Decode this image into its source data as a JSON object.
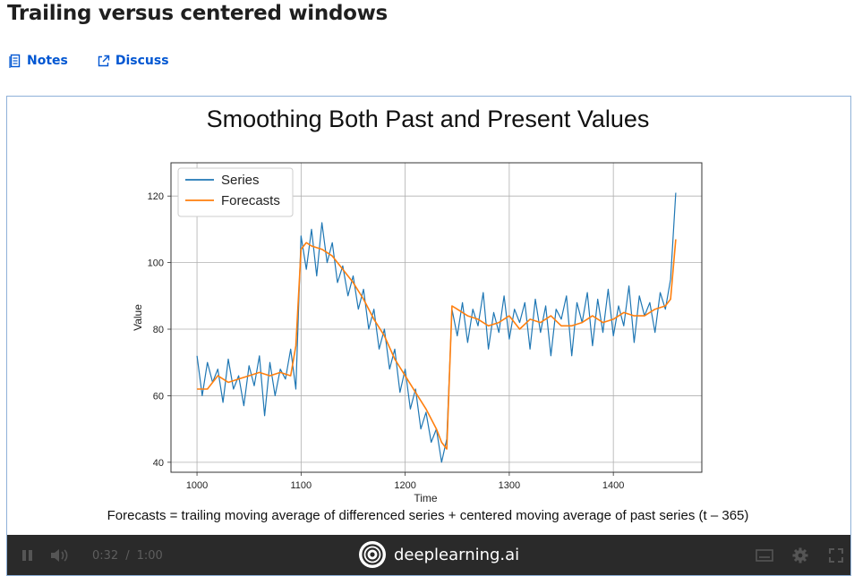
{
  "page": {
    "title": "Trailing versus centered windows"
  },
  "tabs": [
    {
      "label": "Notes",
      "icon": "notes-icon"
    },
    {
      "label": "Discuss",
      "icon": "external-link-icon"
    }
  ],
  "colors": {
    "link": "#0056d2",
    "series": "#1f77b4",
    "forecast": "#ff7f0e",
    "controls_bg": "#2a2a2a"
  },
  "slide": {
    "title": "Smoothing Both Past and Present Values",
    "caption": "Forecasts = trailing moving average of differenced series + centered moving average of past series (t – 365)"
  },
  "player": {
    "current_time": "0:32",
    "separator": "/",
    "duration": "1:00",
    "brand": "deeplearning.ai"
  },
  "chart_data": {
    "type": "line",
    "title": "",
    "xlabel": "Time",
    "ylabel": "Value",
    "xlim": [
      975,
      1485
    ],
    "ylim": [
      37,
      130
    ],
    "xticks": [
      1000,
      1100,
      1200,
      1300,
      1400
    ],
    "yticks": [
      40,
      60,
      80,
      100,
      120
    ],
    "grid": true,
    "legend": {
      "position": "top-left",
      "entries": [
        "Series",
        "Forecasts"
      ]
    },
    "series": [
      {
        "name": "Series",
        "x": [
          1000,
          1005,
          1010,
          1015,
          1020,
          1025,
          1030,
          1035,
          1040,
          1045,
          1050,
          1055,
          1060,
          1065,
          1070,
          1075,
          1080,
          1085,
          1090,
          1095,
          1100,
          1105,
          1110,
          1115,
          1120,
          1125,
          1130,
          1135,
          1140,
          1145,
          1150,
          1155,
          1160,
          1165,
          1170,
          1175,
          1180,
          1185,
          1190,
          1195,
          1200,
          1205,
          1210,
          1215,
          1220,
          1225,
          1230,
          1235,
          1240,
          1245,
          1250,
          1255,
          1260,
          1265,
          1270,
          1275,
          1280,
          1285,
          1290,
          1295,
          1300,
          1305,
          1310,
          1315,
          1320,
          1325,
          1330,
          1335,
          1340,
          1345,
          1350,
          1355,
          1360,
          1365,
          1370,
          1375,
          1380,
          1385,
          1390,
          1395,
          1400,
          1405,
          1410,
          1415,
          1420,
          1425,
          1430,
          1435,
          1440,
          1445,
          1450,
          1455,
          1460
        ],
        "values": [
          72,
          60,
          70,
          64,
          68,
          58,
          71,
          62,
          66,
          57,
          69,
          63,
          72,
          54,
          70,
          60,
          68,
          65,
          74,
          62,
          108,
          98,
          110,
          96,
          112,
          100,
          106,
          94,
          99,
          90,
          96,
          86,
          92,
          80,
          86,
          74,
          80,
          68,
          74,
          61,
          68,
          56,
          62,
          50,
          55,
          46,
          50,
          40,
          47,
          86,
          78,
          88,
          76,
          86,
          81,
          91,
          74,
          85,
          79,
          90,
          77,
          86,
          82,
          88,
          74,
          89,
          79,
          87,
          72,
          86,
          83,
          90,
          72,
          88,
          82,
          91,
          75,
          89,
          79,
          92,
          78,
          87,
          81,
          93,
          76,
          90,
          84,
          88,
          79,
          91,
          86,
          95,
          121
        ]
      },
      {
        "name": "Forecasts",
        "x": [
          1000,
          1010,
          1020,
          1030,
          1040,
          1050,
          1060,
          1070,
          1080,
          1090,
          1095,
          1100,
          1105,
          1110,
          1120,
          1130,
          1140,
          1150,
          1160,
          1170,
          1180,
          1190,
          1200,
          1210,
          1220,
          1230,
          1235,
          1240,
          1245,
          1250,
          1260,
          1270,
          1280,
          1290,
          1300,
          1310,
          1320,
          1330,
          1340,
          1350,
          1360,
          1370,
          1380,
          1390,
          1400,
          1410,
          1420,
          1430,
          1440,
          1450,
          1455,
          1460
        ],
        "values": [
          62,
          62,
          66,
          64,
          65,
          66,
          67,
          66,
          67,
          66,
          75,
          104,
          106,
          105,
          104,
          102,
          98,
          94,
          89,
          83,
          78,
          71,
          66,
          61,
          56,
          50,
          46,
          44,
          87,
          86,
          84,
          83,
          81,
          82,
          84,
          80,
          83,
          82,
          84,
          81,
          81,
          82,
          84,
          82,
          83,
          85,
          84,
          84,
          86,
          87,
          89,
          107
        ]
      }
    ]
  }
}
